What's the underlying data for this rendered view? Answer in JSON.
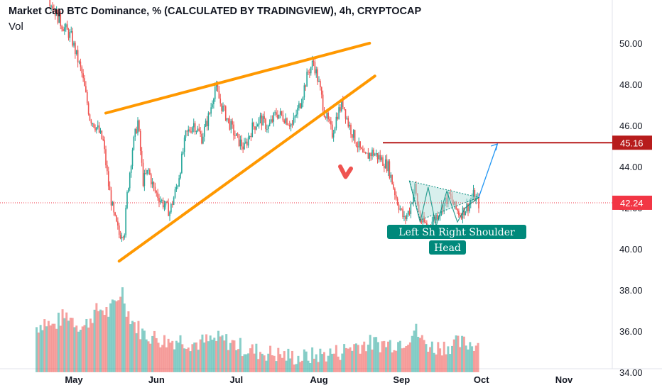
{
  "header": {
    "title": "Market Cap BTC Dominance, % (CALCULATED BY TRADINGVIEW), 4h, CRYPTOCAP",
    "volume_label": "Vol"
  },
  "colors": {
    "up": "#26a69a",
    "down": "#ef5350",
    "trendline": "#ff9800",
    "resistance": "#b71c1c",
    "current_price": "#f23645",
    "pattern_fill": "#b2dfdb",
    "label_bg": "#00897b",
    "projection": "#2196f3"
  },
  "chart_data": {
    "type": "candlestick",
    "title": "Market Cap BTC Dominance, % (CALCULATED BY TRADINGVIEW), 4h, CRYPTOCAP",
    "ylabel": "",
    "xlabel": "",
    "ylim": [
      33.9,
      52.1
    ],
    "y_ticks": [
      "50.00",
      "48.00",
      "46.00",
      "44.00",
      "42.00",
      "40.00",
      "38.00",
      "36.00",
      "34.00"
    ],
    "x_ticks": [
      "May",
      "Jun",
      "Jul",
      "Aug",
      "Sep",
      "Oct",
      "Nov"
    ],
    "x_tick_days": [
      0,
      31,
      61,
      92,
      123,
      153,
      184
    ],
    "price_path": [
      [
        -9,
        52.1
      ],
      [
        -5,
        51.0
      ],
      [
        -1,
        50.3
      ],
      [
        3,
        48.5
      ],
      [
        6,
        46.4
      ],
      [
        9,
        45.8
      ],
      [
        11,
        45.2
      ],
      [
        13,
        43.1
      ],
      [
        15,
        41.6
      ],
      [
        17,
        40.7
      ],
      [
        19,
        40.9
      ],
      [
        20,
        42.6
      ],
      [
        22,
        44.9
      ],
      [
        24,
        46.2
      ],
      [
        26,
        43.3
      ],
      [
        28,
        43.8
      ],
      [
        30,
        42.9
      ],
      [
        33,
        42.3
      ],
      [
        36,
        41.8
      ],
      [
        39,
        43.2
      ],
      [
        42,
        45.5
      ],
      [
        45,
        46.1
      ],
      [
        48,
        45.4
      ],
      [
        51,
        46.6
      ],
      [
        53,
        47.9
      ],
      [
        55,
        47.1
      ],
      [
        58,
        46.2
      ],
      [
        61,
        45.4
      ],
      [
        64,
        44.9
      ],
      [
        67,
        45.9
      ],
      [
        70,
        46.3
      ],
      [
        73,
        45.9
      ],
      [
        76,
        46.6
      ],
      [
        79,
        46.4
      ],
      [
        82,
        46.0
      ],
      [
        85,
        47.1
      ],
      [
        88,
        48.6
      ],
      [
        90,
        49.1
      ],
      [
        92,
        48.0
      ],
      [
        94,
        46.7
      ],
      [
        97,
        45.6
      ],
      [
        99,
        46.6
      ],
      [
        101,
        47.1
      ],
      [
        103,
        46.1
      ],
      [
        106,
        45.2
      ],
      [
        109,
        44.4
      ],
      [
        112,
        44.7
      ],
      [
        115,
        44.4
      ],
      [
        118,
        44.0
      ],
      [
        121,
        42.5
      ],
      [
        124,
        41.4
      ],
      [
        126,
        41.9
      ],
      [
        128,
        43.0
      ],
      [
        130,
        41.4
      ],
      [
        133,
        41.1
      ],
      [
        136,
        41.6
      ],
      [
        139,
        42.2
      ],
      [
        141,
        42.6
      ],
      [
        143,
        42.0
      ],
      [
        145,
        41.7
      ],
      [
        148,
        42.1
      ],
      [
        150,
        42.6
      ],
      [
        152,
        42.2
      ]
    ],
    "volume_path": [
      [
        -14,
        36.2
      ],
      [
        -11,
        36.5
      ],
      [
        -8,
        36.2
      ],
      [
        -5,
        36.6
      ],
      [
        -2,
        36.8
      ],
      [
        1,
        36.4
      ],
      [
        4,
        36.2
      ],
      [
        7,
        36.8
      ],
      [
        10,
        37.1
      ],
      [
        13,
        36.9
      ],
      [
        16,
        37.4
      ],
      [
        18,
        38.1
      ],
      [
        20,
        37.0
      ],
      [
        23,
        36.3
      ],
      [
        26,
        35.9
      ],
      [
        30,
        35.7
      ],
      [
        35,
        35.5
      ],
      [
        40,
        35.6
      ],
      [
        45,
        35.4
      ],
      [
        50,
        35.5
      ],
      [
        55,
        35.6
      ],
      [
        60,
        35.4
      ],
      [
        65,
        35.1
      ],
      [
        70,
        35.0
      ],
      [
        75,
        34.9
      ],
      [
        80,
        34.8
      ],
      [
        85,
        34.7
      ],
      [
        90,
        34.8
      ],
      [
        95,
        34.9
      ],
      [
        100,
        35.0
      ],
      [
        105,
        35.3
      ],
      [
        110,
        35.4
      ],
      [
        115,
        35.4
      ],
      [
        120,
        35.4
      ],
      [
        125,
        35.6
      ],
      [
        128,
        36.1
      ],
      [
        131,
        35.5
      ],
      [
        135,
        35.2
      ],
      [
        140,
        35.3
      ],
      [
        145,
        35.4
      ],
      [
        152,
        35.4
      ]
    ],
    "current_price": 42.24,
    "current_price_label": "42.24",
    "resistance_level": 45.16,
    "resistance_label": "45.16",
    "resistance_start_day": 116,
    "trendlines": [
      {
        "name": "upper-wedge-line",
        "from": [
          12,
          46.6
        ],
        "to": [
          111,
          50.0
        ]
      },
      {
        "name": "lower-wedge-line",
        "from": [
          17,
          39.4
        ],
        "to": [
          113,
          48.4
        ]
      }
    ],
    "pattern_triangle": [
      [
        126,
        43.3
      ],
      [
        130,
        41.4
      ],
      [
        152,
        42.5
      ]
    ],
    "pattern_zigzag": [
      [
        126,
        43.3
      ],
      [
        130,
        41.3
      ],
      [
        133,
        43.0
      ],
      [
        136,
        41.1
      ],
      [
        140,
        42.8
      ],
      [
        144,
        41.3
      ],
      [
        147,
        42.0
      ],
      [
        152,
        42.5
      ]
    ],
    "projection": [
      [
        152,
        42.5
      ],
      [
        159,
        45.1
      ]
    ],
    "down_arrow": [
      [
        100,
        44.0
      ],
      [
        102,
        43.5
      ],
      [
        104,
        43.9
      ]
    ],
    "annotations": [
      "Left Sh Right Shoulder",
      "Head"
    ]
  }
}
